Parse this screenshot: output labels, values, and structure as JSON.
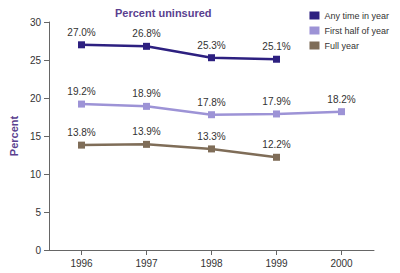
{
  "chart_data": {
    "type": "line",
    "title": "Percent uninsured",
    "y_label": "Percent",
    "categories": [
      "1996",
      "1997",
      "1998",
      "1999",
      "2000"
    ],
    "series": [
      {
        "name": "Any time in year",
        "color": "#2d2080",
        "marker": "square",
        "line_style": "solid",
        "values": [
          27.0,
          26.8,
          25.3,
          25.1,
          null
        ],
        "value_labels": [
          "27.0%",
          "26.8%",
          "25.3%",
          "25.1%",
          null
        ]
      },
      {
        "name": "First half of year",
        "color": "#9d93d6",
        "marker": "square",
        "line_style": "solid",
        "values": [
          19.2,
          18.9,
          17.8,
          17.9,
          18.2
        ],
        "value_labels": [
          "19.2%",
          "18.9%",
          "17.8%",
          "17.9%",
          "18.2%"
        ]
      },
      {
        "name": "Full year",
        "color": "#7f6d58",
        "marker": "square",
        "line_style": "solid",
        "values": [
          13.8,
          13.9,
          13.3,
          12.2,
          null
        ],
        "value_labels": [
          "13.8%",
          "13.9%",
          "13.3%",
          "12.2%",
          null
        ]
      }
    ],
    "ylim": [
      0,
      30
    ],
    "yticks": [
      0,
      5,
      10,
      15,
      20,
      25,
      30
    ],
    "grid": false,
    "legend": "upper right",
    "data_labels": true
  }
}
